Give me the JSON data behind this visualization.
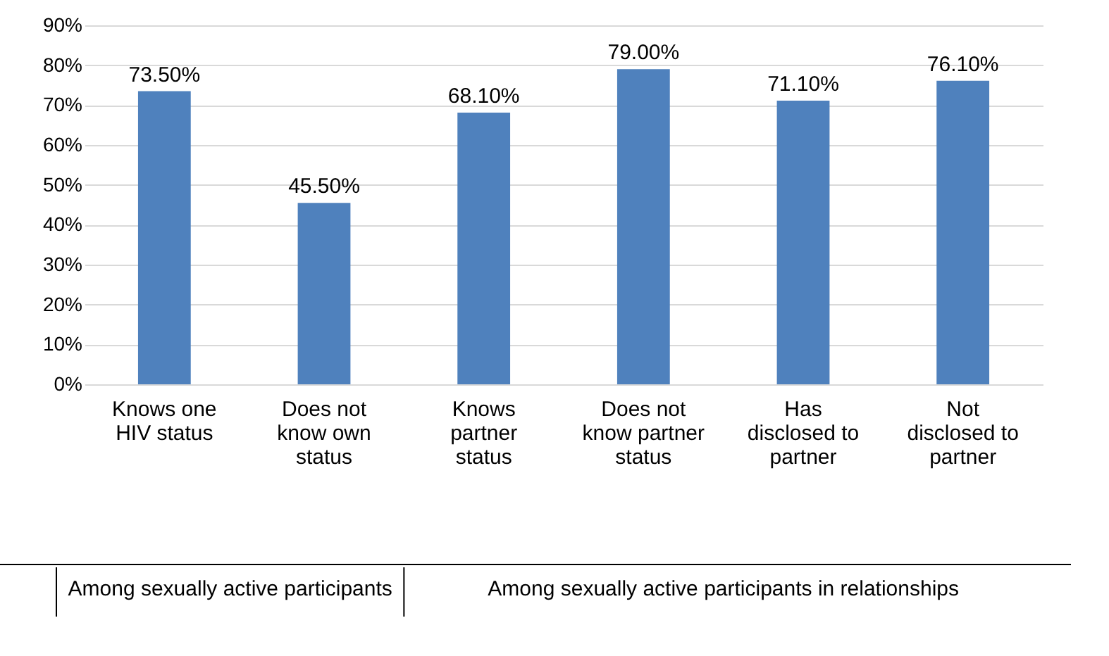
{
  "chart_data": {
    "type": "bar",
    "categories": [
      "Knows one HIV status",
      "Does not know own status",
      "Knows partner status",
      "Does not know partner status",
      "Has disclosed to partner",
      "Not disclosed to partner"
    ],
    "values": [
      73.5,
      45.5,
      68.1,
      79.0,
      71.1,
      76.1
    ],
    "value_labels": [
      "73.50%",
      "45.50%",
      "68.10%",
      "79.00%",
      "71.10%",
      "76.10%"
    ],
    "color": "#4f81bd",
    "ylim": [
      0,
      90
    ],
    "yticks": [
      {
        "value": 0,
        "label": "0%"
      },
      {
        "value": 10,
        "label": "10%"
      },
      {
        "value": 20,
        "label": "20%"
      },
      {
        "value": 30,
        "label": "30%"
      },
      {
        "value": 40,
        "label": "40%"
      },
      {
        "value": 50,
        "label": "50%"
      },
      {
        "value": 60,
        "label": "60%"
      },
      {
        "value": 70,
        "label": "70%"
      },
      {
        "value": 80,
        "label": "80%"
      },
      {
        "value": 90,
        "label": "90%"
      }
    ],
    "grid": "y",
    "annotations": [
      "Among sexually active participants",
      "Among sexually active participants in relationships"
    ]
  }
}
